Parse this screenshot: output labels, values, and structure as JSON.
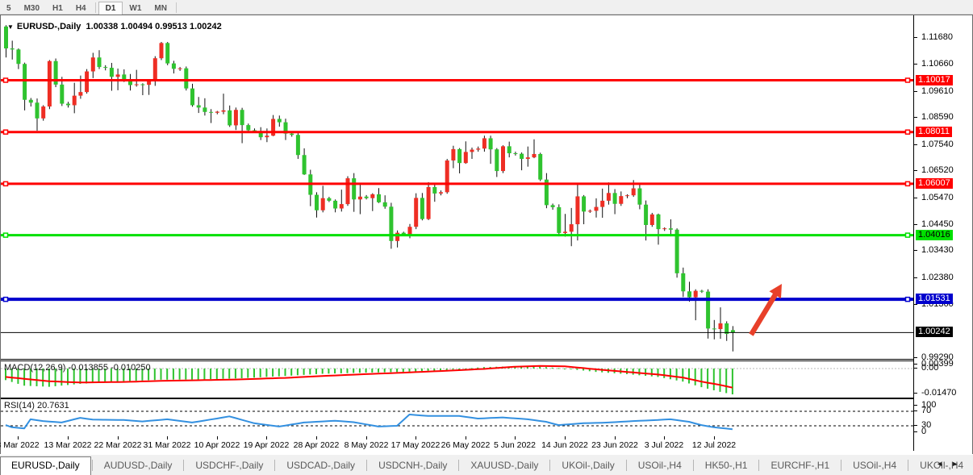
{
  "toolbar": {
    "buttons": [
      {
        "label": "5",
        "active": false
      },
      {
        "label": "M30",
        "active": false
      },
      {
        "label": "H1",
        "active": false
      },
      {
        "label": "H4",
        "active": false
      },
      {
        "label": "D1",
        "active": true
      },
      {
        "label": "W1",
        "active": false
      },
      {
        "label": "MN",
        "active": false
      }
    ]
  },
  "title": {
    "symbol": "EURUSD-,Daily",
    "ohlc": "1.00338 1.00494 0.99513 1.00242"
  },
  "colors": {
    "candle_up": "#ee2e24",
    "candle_down": "#2fc32f",
    "wick": "#111111",
    "red_line": "#ff0000",
    "green_line": "#00e000",
    "blue_line": "#0000cd",
    "price_line": "#000000",
    "macd_hist": "#2fc32f",
    "macd_signal": "#ff0000",
    "rsi_line": "#3390e0",
    "arrow": "#e8402a"
  },
  "chart_data": {
    "type": "candlestick+indicators",
    "symbol": "EURUSD-,Daily",
    "y_axis_ticks": [
      "1.11680",
      "1.10660",
      "1.09610",
      "1.08590",
      "1.07540",
      "1.06520",
      "1.05470",
      "1.04450",
      "1.03430",
      "1.02380",
      "1.01360",
      "0.99290"
    ],
    "ylim": [
      0.9916,
      1.1222
    ],
    "hlines": [
      {
        "price": 1.10017,
        "label": "1.10017",
        "color": "red",
        "width": 3
      },
      {
        "price": 1.08011,
        "label": "1.08011",
        "color": "red",
        "width": 3
      },
      {
        "price": 1.06007,
        "label": "1.06007",
        "color": "red",
        "width": 3
      },
      {
        "price": 1.04016,
        "label": "1.04016",
        "color": "green",
        "width": 3
      },
      {
        "price": 1.01531,
        "label": "1.01531",
        "color": "blue",
        "width": 4
      }
    ],
    "current_price": {
      "price": 1.00242,
      "label": "1.00242"
    },
    "x_dates": [
      "3 Mar 2022",
      "13 Mar 2022",
      "22 Mar 2022",
      "31 Mar 2022",
      "10 Apr 2022",
      "19 Apr 2022",
      "28 Apr 2022",
      "8 May 2022",
      "17 May 2022",
      "26 May 2022",
      "5 Jun 2022",
      "14 Jun 2022",
      "23 Jun 2022",
      "3 Jul 2022",
      "12 Jul 2022"
    ],
    "first_labeled_bar": 2,
    "bars_per_label": 8,
    "candles": [
      [
        1.121,
        1.1215,
        1.109,
        1.1125
      ],
      [
        1.1125,
        1.1155,
        1.1082,
        1.1121
      ],
      [
        1.1121,
        1.1125,
        1.1045,
        1.1065
      ],
      [
        1.1065,
        1.107,
        1.0885,
        1.0926
      ],
      [
        1.0926,
        1.0933,
        1.09,
        1.0915
      ],
      [
        1.0915,
        1.0931,
        1.0806,
        1.0854
      ],
      [
        1.0854,
        1.0905,
        1.0845,
        1.09
      ],
      [
        1.09,
        1.108,
        1.089,
        1.1076
      ],
      [
        1.1076,
        1.1086,
        1.0975,
        1.0985
      ],
      [
        1.0985,
        1.1015,
        1.0902,
        1.0911
      ],
      [
        1.0911,
        1.0918,
        1.0896,
        1.0905
      ],
      [
        1.0905,
        1.0992,
        1.0874,
        1.0942
      ],
      [
        1.0942,
        1.102,
        1.093,
        1.0956
      ],
      [
        1.0956,
        1.1045,
        1.095,
        1.1036
      ],
      [
        1.1036,
        1.1108,
        1.101,
        1.109
      ],
      [
        1.109,
        1.1118,
        1.1045,
        1.1053
      ],
      [
        1.1053,
        1.106,
        1.104,
        1.105
      ],
      [
        1.105,
        1.1069,
        1.0961,
        1.1015
      ],
      [
        1.1015,
        1.1047,
        1.0963,
        1.1024
      ],
      [
        1.1024,
        1.1044,
        1.0995,
        1.1003
      ],
      [
        1.1003,
        1.1026,
        1.0962,
        1.0983
      ],
      [
        1.0983,
        1.1042,
        1.0977,
        1.0986
      ],
      [
        1.0986,
        1.099,
        1.0944,
        1.0984
      ],
      [
        1.0984,
        1.1,
        1.0945,
        1.0998
      ],
      [
        1.0998,
        1.1095,
        1.098,
        1.1087
      ],
      [
        1.1087,
        1.115,
        1.108,
        1.1146
      ],
      [
        1.1146,
        1.115,
        1.106,
        1.1067
      ],
      [
        1.1067,
        1.1077,
        1.1028,
        1.1046
      ],
      [
        1.1046,
        1.1053,
        1.1038,
        1.1048
      ],
      [
        1.1048,
        1.1055,
        1.0962,
        1.097
      ],
      [
        1.097,
        1.0988,
        1.0899,
        1.0905
      ],
      [
        1.0905,
        1.0937,
        1.0875,
        1.0896
      ],
      [
        1.0896,
        1.0932,
        1.0865,
        1.0879
      ],
      [
        1.0879,
        1.089,
        1.0836,
        1.0876
      ],
      [
        1.0876,
        1.0883,
        1.087,
        1.088
      ],
      [
        1.088,
        1.095,
        1.087,
        1.0885
      ],
      [
        1.0885,
        1.0904,
        1.0821,
        1.0827
      ],
      [
        1.0827,
        1.0896,
        1.0809,
        1.0887
      ],
      [
        1.0887,
        1.0895,
        1.0758,
        1.0828
      ],
      [
        1.0828,
        1.0834,
        1.08,
        1.0808
      ],
      [
        1.0808,
        1.0815,
        1.0798,
        1.0805
      ],
      [
        1.0805,
        1.082,
        1.077,
        1.0781
      ],
      [
        1.0781,
        1.0815,
        1.0762,
        1.0787
      ],
      [
        1.0787,
        1.0867,
        1.0785,
        1.0852
      ],
      [
        1.0852,
        1.0865,
        1.0822,
        1.0839
      ],
      [
        1.0839,
        1.0853,
        1.077,
        1.0795
      ],
      [
        1.0795,
        1.08,
        1.0783,
        1.079
      ],
      [
        1.079,
        1.0797,
        1.0697,
        1.0712
      ],
      [
        1.0712,
        1.0738,
        1.0635,
        1.0637
      ],
      [
        1.0637,
        1.0655,
        1.0514,
        1.0558
      ],
      [
        1.0558,
        1.0568,
        1.047,
        1.0498
      ],
      [
        1.0498,
        1.0593,
        1.049,
        1.0545
      ],
      [
        1.0545,
        1.055,
        1.053,
        1.0535
      ],
      [
        1.0535,
        1.054,
        1.049,
        1.0505
      ],
      [
        1.0505,
        1.0578,
        1.0493,
        1.0522
      ],
      [
        1.0522,
        1.063,
        1.0515,
        1.0622
      ],
      [
        1.0622,
        1.0642,
        1.0492,
        1.054
      ],
      [
        1.054,
        1.0599,
        1.0483,
        1.0551
      ],
      [
        1.0551,
        1.0557,
        1.054,
        1.0545
      ],
      [
        1.0545,
        1.0564,
        1.0495,
        1.056
      ],
      [
        1.056,
        1.0584,
        1.0526,
        1.0529
      ],
      [
        1.0529,
        1.0556,
        1.0504,
        1.0512
      ],
      [
        1.0512,
        1.0527,
        1.0349,
        1.0379
      ],
      [
        1.0379,
        1.042,
        1.0354,
        1.0411
      ],
      [
        1.0411,
        1.0415,
        1.0398,
        1.0405
      ],
      [
        1.0405,
        1.0445,
        1.039,
        1.0434
      ],
      [
        1.0434,
        1.0564,
        1.0425,
        1.0546
      ],
      [
        1.0546,
        1.0565,
        1.0459,
        1.0464
      ],
      [
        1.0464,
        1.0607,
        1.046,
        1.0588
      ],
      [
        1.0588,
        1.0604,
        1.0531,
        1.0563
      ],
      [
        1.0563,
        1.0575,
        1.0556,
        1.0568
      ],
      [
        1.0568,
        1.0697,
        1.0562,
        1.0691
      ],
      [
        1.0691,
        1.0748,
        1.0661,
        1.0735
      ],
      [
        1.0735,
        1.0739,
        1.0641,
        1.0681
      ],
      [
        1.0681,
        1.0765,
        1.0678,
        1.0724
      ],
      [
        1.0724,
        1.0741,
        1.0697,
        1.0733
      ],
      [
        1.0733,
        1.0745,
        1.0725,
        1.0737
      ],
      [
        1.0737,
        1.0787,
        1.0725,
        1.0777
      ],
      [
        1.0777,
        1.0787,
        1.0678,
        1.0734
      ],
      [
        1.0734,
        1.0739,
        1.0627,
        1.065
      ],
      [
        1.065,
        1.075,
        1.0642,
        1.0746
      ],
      [
        1.0746,
        1.0764,
        1.0703,
        1.0719
      ],
      [
        1.0719,
        1.0725,
        1.071,
        1.0717
      ],
      [
        1.0717,
        1.0722,
        1.0653,
        1.0697
      ],
      [
        1.0697,
        1.0745,
        1.0667,
        1.0703
      ],
      [
        1.0703,
        1.0773,
        1.07,
        1.0716
      ],
      [
        1.0716,
        1.0721,
        1.0611,
        1.0617
      ],
      [
        1.0617,
        1.0642,
        1.0506,
        1.0518
      ],
      [
        1.0518,
        1.0524,
        1.05,
        1.051
      ],
      [
        1.051,
        1.0521,
        1.0397,
        1.041
      ],
      [
        1.041,
        1.0484,
        1.0396,
        1.0415
      ],
      [
        1.0415,
        1.0507,
        1.0359,
        1.0444
      ],
      [
        1.0444,
        1.0601,
        1.0381,
        1.0552
      ],
      [
        1.0552,
        1.0557,
        1.0444,
        1.0493
      ],
      [
        1.0493,
        1.0501,
        1.0488,
        1.0496
      ],
      [
        1.0496,
        1.0544,
        1.047,
        1.0511
      ],
      [
        1.0511,
        1.0582,
        1.0469,
        1.0535
      ],
      [
        1.0535,
        1.0606,
        1.052,
        1.0565
      ],
      [
        1.0565,
        1.058,
        1.0483,
        1.0523
      ],
      [
        1.0523,
        1.0571,
        1.0515,
        1.0553
      ],
      [
        1.0553,
        1.056,
        1.0545,
        1.0556
      ],
      [
        1.0556,
        1.0615,
        1.055,
        1.0583
      ],
      [
        1.0583,
        1.06,
        1.0502,
        1.052
      ],
      [
        1.052,
        1.0536,
        1.0381,
        1.0441
      ],
      [
        1.0441,
        1.0488,
        1.0434,
        1.0482
      ],
      [
        1.0482,
        1.0485,
        1.0365,
        1.0425
      ],
      [
        1.0425,
        1.0432,
        1.0418,
        1.0428
      ],
      [
        1.0428,
        1.0463,
        1.0397,
        1.0423
      ],
      [
        1.0423,
        1.0428,
        1.0237,
        1.0254
      ],
      [
        1.0254,
        1.0276,
        1.0162,
        1.0184
      ],
      [
        1.0184,
        1.0221,
        1.0144,
        1.0161
      ],
      [
        1.0161,
        1.0192,
        1.0072,
        1.0186
      ],
      [
        1.0186,
        1.019,
        1.0178,
        1.0183
      ],
      [
        1.0183,
        1.0192,
        1.0001,
        1.004
      ],
      [
        1.004,
        1.0073,
        0.9998,
        1.0038
      ],
      [
        1.0038,
        1.0122,
        1.0,
        1.006
      ],
      [
        1.006,
        1.0068,
        0.9992,
        1.0019
      ],
      [
        1.00338,
        1.00494,
        0.99513,
        1.00242
      ]
    ],
    "macd": {
      "label": "MACD(12,26,9)",
      "values": "-0.013855 -0.010250",
      "scale_labels": [
        "0.00399",
        "0.00",
        "-0.01470"
      ],
      "scale_values": [
        0.00399,
        0.0,
        -0.0147
      ],
      "keyframes": [
        [
          0,
          -0.0062,
          -0.0045
        ],
        [
          3,
          -0.0092,
          -0.0055
        ],
        [
          7,
          -0.0098,
          -0.0068
        ],
        [
          12,
          -0.0082,
          -0.0075
        ],
        [
          19,
          -0.0068,
          -0.0072
        ],
        [
          25,
          -0.006,
          -0.0066
        ],
        [
          32,
          -0.0058,
          -0.0062
        ],
        [
          38,
          -0.0052,
          -0.0058
        ],
        [
          45,
          -0.004,
          -0.005
        ],
        [
          51,
          -0.0028,
          -0.004
        ],
        [
          58,
          -0.0022,
          -0.003
        ],
        [
          64,
          -0.0018,
          -0.0022
        ],
        [
          71,
          -0.0008,
          -0.0012
        ],
        [
          77,
          0.0008,
          -0.0002
        ],
        [
          82,
          0.0012,
          0.001
        ],
        [
          86,
          0.001,
          0.0014
        ],
        [
          90,
          0.0,
          0.0012
        ],
        [
          95,
          -0.0018,
          -0.0004
        ],
        [
          100,
          -0.003,
          -0.0018
        ],
        [
          105,
          -0.0045,
          -0.0032
        ],
        [
          109,
          -0.007,
          -0.0048
        ],
        [
          112,
          -0.01,
          -0.007
        ],
        [
          115,
          -0.0125,
          -0.0088
        ],
        [
          117,
          -0.013855,
          -0.01025
        ]
      ]
    },
    "rsi": {
      "label": "RSI(14)",
      "value": "20.7631",
      "scale_labels": [
        "100",
        "70",
        "30",
        "0"
      ],
      "scale_values": [
        100,
        70,
        30,
        0
      ],
      "levels": [
        70,
        30
      ],
      "keyframes": [
        [
          0,
          32
        ],
        [
          1,
          26
        ],
        [
          3,
          23
        ],
        [
          4,
          48
        ],
        [
          6,
          43
        ],
        [
          9,
          39
        ],
        [
          12,
          52
        ],
        [
          14,
          47
        ],
        [
          19,
          46
        ],
        [
          22,
          42
        ],
        [
          26,
          48
        ],
        [
          30,
          39
        ],
        [
          34,
          50
        ],
        [
          36,
          56
        ],
        [
          40,
          37
        ],
        [
          44,
          28
        ],
        [
          48,
          39
        ],
        [
          53,
          44
        ],
        [
          56,
          40
        ],
        [
          60,
          28
        ],
        [
          63,
          30
        ],
        [
          65,
          61
        ],
        [
          68,
          57
        ],
        [
          73,
          57
        ],
        [
          76,
          50
        ],
        [
          80,
          53
        ],
        [
          84,
          48
        ],
        [
          87,
          41
        ],
        [
          89,
          32
        ],
        [
          93,
          37
        ],
        [
          97,
          39
        ],
        [
          101,
          43
        ],
        [
          105,
          46
        ],
        [
          107,
          48
        ],
        [
          110,
          41
        ],
        [
          112,
          32
        ],
        [
          114,
          26
        ],
        [
          117,
          20.7631
        ]
      ]
    },
    "annotation_arrow": {
      "from_x": 930,
      "from_y": 396,
      "to_x": 968,
      "to_y": 333
    }
  },
  "tabs": {
    "items": [
      {
        "label": "EURUSD-,Daily",
        "active": true
      },
      {
        "label": "AUDUSD-,Daily",
        "active": false
      },
      {
        "label": "USDCHF-,Daily",
        "active": false
      },
      {
        "label": "USDCAD-,Daily",
        "active": false
      },
      {
        "label": "USDCNH-,Daily",
        "active": false
      },
      {
        "label": "XAUUSD-,Daily",
        "active": false
      },
      {
        "label": "UKOil-,Daily",
        "active": false
      },
      {
        "label": "USOil-,H4",
        "active": false
      },
      {
        "label": "HK50-,H1",
        "active": false
      },
      {
        "label": "EURCHF-,H1",
        "active": false
      },
      {
        "label": "USOil-,H4",
        "active": false
      },
      {
        "label": "UKOil-,H4",
        "active": false
      }
    ],
    "scroll_left": "◄",
    "scroll_right": "►"
  }
}
